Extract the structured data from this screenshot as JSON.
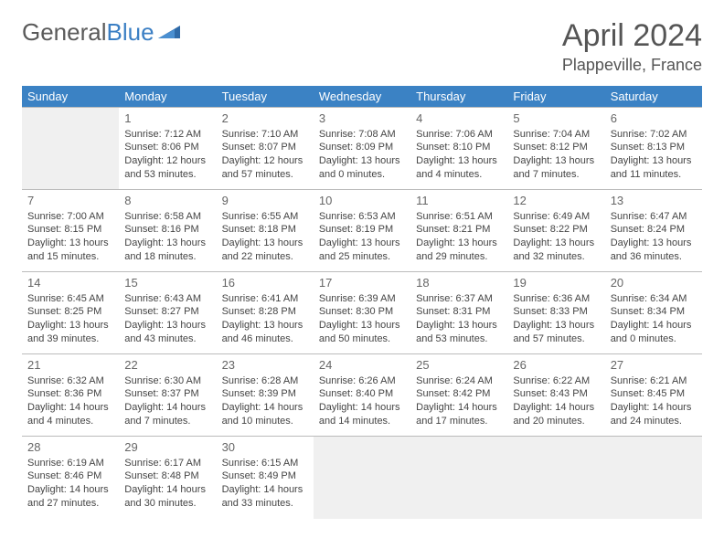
{
  "logo": {
    "text1": "General",
    "text2": "Blue"
  },
  "title": "April 2024",
  "location": "Plappeville, France",
  "colors": {
    "header_bg": "#3b82c4",
    "header_text": "#ffffff",
    "blank_bg": "#f0f0f0",
    "border": "#bbbbbb",
    "text": "#444444",
    "title_text": "#555555",
    "logo_gray": "#5a5a5a",
    "logo_blue": "#3b7fc4"
  },
  "weekdays": [
    "Sunday",
    "Monday",
    "Tuesday",
    "Wednesday",
    "Thursday",
    "Friday",
    "Saturday"
  ],
  "weeks": [
    [
      null,
      {
        "n": "1",
        "sr": "Sunrise: 7:12 AM",
        "ss": "Sunset: 8:06 PM",
        "d1": "Daylight: 12 hours",
        "d2": "and 53 minutes."
      },
      {
        "n": "2",
        "sr": "Sunrise: 7:10 AM",
        "ss": "Sunset: 8:07 PM",
        "d1": "Daylight: 12 hours",
        "d2": "and 57 minutes."
      },
      {
        "n": "3",
        "sr": "Sunrise: 7:08 AM",
        "ss": "Sunset: 8:09 PM",
        "d1": "Daylight: 13 hours",
        "d2": "and 0 minutes."
      },
      {
        "n": "4",
        "sr": "Sunrise: 7:06 AM",
        "ss": "Sunset: 8:10 PM",
        "d1": "Daylight: 13 hours",
        "d2": "and 4 minutes."
      },
      {
        "n": "5",
        "sr": "Sunrise: 7:04 AM",
        "ss": "Sunset: 8:12 PM",
        "d1": "Daylight: 13 hours",
        "d2": "and 7 minutes."
      },
      {
        "n": "6",
        "sr": "Sunrise: 7:02 AM",
        "ss": "Sunset: 8:13 PM",
        "d1": "Daylight: 13 hours",
        "d2": "and 11 minutes."
      }
    ],
    [
      {
        "n": "7",
        "sr": "Sunrise: 7:00 AM",
        "ss": "Sunset: 8:15 PM",
        "d1": "Daylight: 13 hours",
        "d2": "and 15 minutes."
      },
      {
        "n": "8",
        "sr": "Sunrise: 6:58 AM",
        "ss": "Sunset: 8:16 PM",
        "d1": "Daylight: 13 hours",
        "d2": "and 18 minutes."
      },
      {
        "n": "9",
        "sr": "Sunrise: 6:55 AM",
        "ss": "Sunset: 8:18 PM",
        "d1": "Daylight: 13 hours",
        "d2": "and 22 minutes."
      },
      {
        "n": "10",
        "sr": "Sunrise: 6:53 AM",
        "ss": "Sunset: 8:19 PM",
        "d1": "Daylight: 13 hours",
        "d2": "and 25 minutes."
      },
      {
        "n": "11",
        "sr": "Sunrise: 6:51 AM",
        "ss": "Sunset: 8:21 PM",
        "d1": "Daylight: 13 hours",
        "d2": "and 29 minutes."
      },
      {
        "n": "12",
        "sr": "Sunrise: 6:49 AM",
        "ss": "Sunset: 8:22 PM",
        "d1": "Daylight: 13 hours",
        "d2": "and 32 minutes."
      },
      {
        "n": "13",
        "sr": "Sunrise: 6:47 AM",
        "ss": "Sunset: 8:24 PM",
        "d1": "Daylight: 13 hours",
        "d2": "and 36 minutes."
      }
    ],
    [
      {
        "n": "14",
        "sr": "Sunrise: 6:45 AM",
        "ss": "Sunset: 8:25 PM",
        "d1": "Daylight: 13 hours",
        "d2": "and 39 minutes."
      },
      {
        "n": "15",
        "sr": "Sunrise: 6:43 AM",
        "ss": "Sunset: 8:27 PM",
        "d1": "Daylight: 13 hours",
        "d2": "and 43 minutes."
      },
      {
        "n": "16",
        "sr": "Sunrise: 6:41 AM",
        "ss": "Sunset: 8:28 PM",
        "d1": "Daylight: 13 hours",
        "d2": "and 46 minutes."
      },
      {
        "n": "17",
        "sr": "Sunrise: 6:39 AM",
        "ss": "Sunset: 8:30 PM",
        "d1": "Daylight: 13 hours",
        "d2": "and 50 minutes."
      },
      {
        "n": "18",
        "sr": "Sunrise: 6:37 AM",
        "ss": "Sunset: 8:31 PM",
        "d1": "Daylight: 13 hours",
        "d2": "and 53 minutes."
      },
      {
        "n": "19",
        "sr": "Sunrise: 6:36 AM",
        "ss": "Sunset: 8:33 PM",
        "d1": "Daylight: 13 hours",
        "d2": "and 57 minutes."
      },
      {
        "n": "20",
        "sr": "Sunrise: 6:34 AM",
        "ss": "Sunset: 8:34 PM",
        "d1": "Daylight: 14 hours",
        "d2": "and 0 minutes."
      }
    ],
    [
      {
        "n": "21",
        "sr": "Sunrise: 6:32 AM",
        "ss": "Sunset: 8:36 PM",
        "d1": "Daylight: 14 hours",
        "d2": "and 4 minutes."
      },
      {
        "n": "22",
        "sr": "Sunrise: 6:30 AM",
        "ss": "Sunset: 8:37 PM",
        "d1": "Daylight: 14 hours",
        "d2": "and 7 minutes."
      },
      {
        "n": "23",
        "sr": "Sunrise: 6:28 AM",
        "ss": "Sunset: 8:39 PM",
        "d1": "Daylight: 14 hours",
        "d2": "and 10 minutes."
      },
      {
        "n": "24",
        "sr": "Sunrise: 6:26 AM",
        "ss": "Sunset: 8:40 PM",
        "d1": "Daylight: 14 hours",
        "d2": "and 14 minutes."
      },
      {
        "n": "25",
        "sr": "Sunrise: 6:24 AM",
        "ss": "Sunset: 8:42 PM",
        "d1": "Daylight: 14 hours",
        "d2": "and 17 minutes."
      },
      {
        "n": "26",
        "sr": "Sunrise: 6:22 AM",
        "ss": "Sunset: 8:43 PM",
        "d1": "Daylight: 14 hours",
        "d2": "and 20 minutes."
      },
      {
        "n": "27",
        "sr": "Sunrise: 6:21 AM",
        "ss": "Sunset: 8:45 PM",
        "d1": "Daylight: 14 hours",
        "d2": "and 24 minutes."
      }
    ],
    [
      {
        "n": "28",
        "sr": "Sunrise: 6:19 AM",
        "ss": "Sunset: 8:46 PM",
        "d1": "Daylight: 14 hours",
        "d2": "and 27 minutes."
      },
      {
        "n": "29",
        "sr": "Sunrise: 6:17 AM",
        "ss": "Sunset: 8:48 PM",
        "d1": "Daylight: 14 hours",
        "d2": "and 30 minutes."
      },
      {
        "n": "30",
        "sr": "Sunrise: 6:15 AM",
        "ss": "Sunset: 8:49 PM",
        "d1": "Daylight: 14 hours",
        "d2": "and 33 minutes."
      },
      null,
      null,
      null,
      null
    ]
  ]
}
